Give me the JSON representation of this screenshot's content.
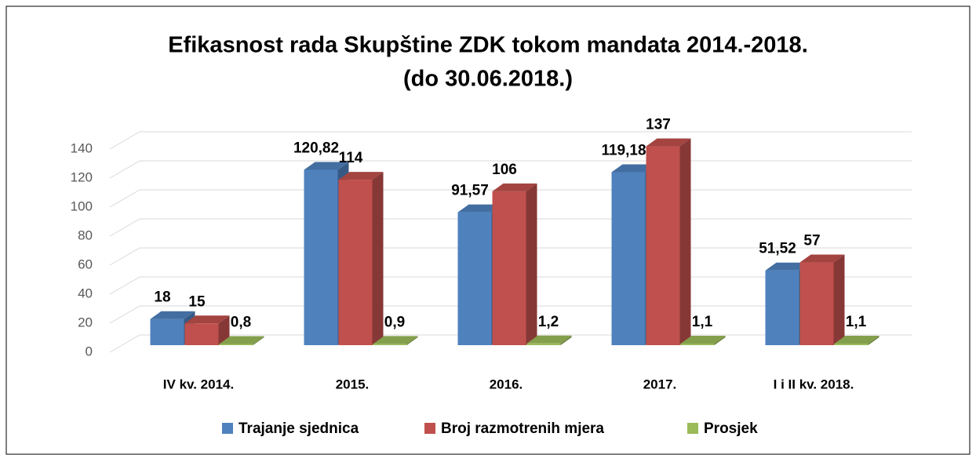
{
  "chart_data": {
    "type": "bar3d",
    "title": "Efikasnost rada Skupštine ZDK tokom mandata 2014.-2018.",
    "subtitle": "(do 30.06.2018.)",
    "categories": [
      "IV kv. 2014.",
      "2015.",
      "2016.",
      "2017.",
      "I i II kv. 2018."
    ],
    "series": [
      {
        "name": "Trajanje sjednica",
        "color": "#4f81bd",
        "values": [
          18,
          120.82,
          91.57,
          119.18,
          51.52
        ],
        "value_labels": [
          "18",
          "120,82",
          "91,57",
          "119,18",
          "51,52"
        ]
      },
      {
        "name": "Broj razmotrenih mjera",
        "color": "#c0504d",
        "values": [
          15,
          114,
          106,
          137,
          57
        ]
      },
      {
        "name": "Prosjek",
        "color": "#9bbb59",
        "values": [
          0.8,
          0.9,
          1.2,
          1.1,
          1.1
        ],
        "value_labels": [
          "0,8",
          "0,9",
          "1,2",
          "1,1",
          "1,1"
        ]
      }
    ],
    "ylim": [
      0,
      140
    ],
    "yticks": [
      0,
      20,
      40,
      60,
      80,
      100,
      120,
      140
    ],
    "grid": true,
    "legend": "bottom"
  }
}
